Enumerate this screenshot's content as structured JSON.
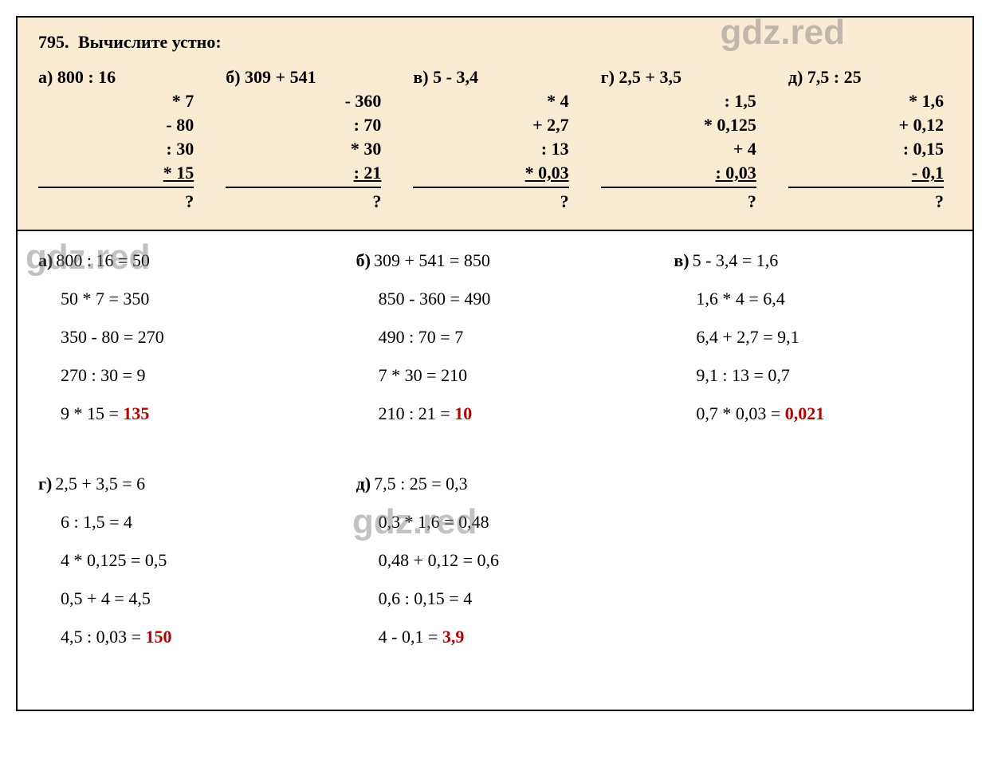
{
  "watermark_text": "gdz.red",
  "watermark_color": "#8a8a8a",
  "answer_color": "#b90000",
  "problem_bg": "#faecd3",
  "task_number": "795.",
  "task_title": "Вычислите устно:",
  "columns": [
    {
      "label": "а)",
      "first": "800 : 16",
      "ops": [
        "* 7",
        "- 80",
        ": 30",
        "* 15"
      ],
      "q": "?"
    },
    {
      "label": "б)",
      "first": "309 + 541",
      "ops": [
        "- 360",
        ": 70",
        "* 30",
        ": 21"
      ],
      "q": "?"
    },
    {
      "label": "в)",
      "first": "5 - 3,4",
      "ops": [
        "* 4",
        "+ 2,7",
        ": 13",
        "* 0,03"
      ],
      "q": "?"
    },
    {
      "label": "г)",
      "first": "2,5 + 3,5",
      "ops": [
        ": 1,5",
        "* 0,125",
        "+ 4",
        ": 0,03"
      ],
      "q": "?"
    },
    {
      "label": "д)",
      "first": "7,5 : 25",
      "ops": [
        "* 1,6",
        "+ 0,12",
        ": 0,15",
        "- 0,1"
      ],
      "q": "?"
    }
  ],
  "solutions_row1": [
    {
      "label": "а)",
      "lines": [
        "800 : 16 = 50",
        "50 * 7 = 350",
        "350 - 80 = 270",
        "270 : 30 = 9"
      ],
      "final_prefix": "9 * 15 = ",
      "final_answer": "135"
    },
    {
      "label": "б)",
      "lines": [
        "309 + 541 = 850",
        "850 - 360 = 490",
        "490 : 70 = 7",
        "7 * 30 = 210"
      ],
      "final_prefix": "210 : 21 = ",
      "final_answer": "10"
    },
    {
      "label": "в)",
      "lines": [
        "5 - 3,4 = 1,6",
        "1,6 * 4 = 6,4",
        "6,4 + 2,7 = 9,1",
        "9,1 : 13 = 0,7"
      ],
      "final_prefix": "0,7 * 0,03 = ",
      "final_answer": "0,021"
    }
  ],
  "solutions_row2": [
    {
      "label": "г)",
      "lines": [
        "2,5 + 3,5 = 6",
        "6 : 1,5 = 4",
        "4 * 0,125 = 0,5",
        "0,5 + 4 = 4,5"
      ],
      "final_prefix": "4,5 : 0,03 = ",
      "final_answer": "150"
    },
    {
      "label": "д)",
      "lines": [
        "7,5 : 25 = 0,3",
        "0,3 * 1,6 = 0,48",
        "0,48 + 0,12 = 0,6",
        "0,6 : 0,15 = 4"
      ],
      "final_prefix": "4 - 0,1 = ",
      "final_answer": "3,9"
    }
  ]
}
